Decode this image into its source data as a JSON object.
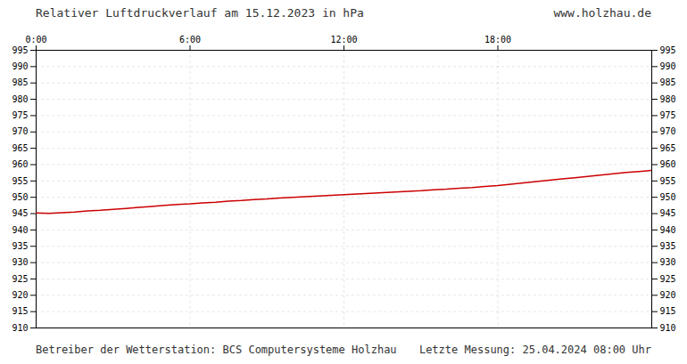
{
  "chart_data": {
    "type": "line",
    "title": "Relativer Luftdruckverlauf am 15.12.2023 in hPa",
    "annotations": [
      "www.holzhau.de",
      "Betreiber der Wetterstation: BCS Computersysteme Holzhau",
      "Letzte Messung: 25.04.2024 08:00 Uhr"
    ],
    "color": "#cc0000",
    "grid": true,
    "xlim": [
      0,
      1440
    ],
    "xticks": [
      {
        "value": 0,
        "label": "0:00"
      },
      {
        "value": 360,
        "label": "6:00"
      },
      {
        "value": 720,
        "label": "12:00"
      },
      {
        "value": 1080,
        "label": "18:00"
      }
    ],
    "ylim": [
      910,
      995
    ],
    "yticks": [
      910,
      915,
      920,
      925,
      930,
      935,
      940,
      945,
      950,
      955,
      960,
      965,
      970,
      975,
      980,
      985,
      990,
      995
    ],
    "x": [
      0,
      30,
      60,
      90,
      120,
      150,
      180,
      210,
      240,
      270,
      300,
      330,
      360,
      390,
      420,
      450,
      480,
      510,
      540,
      570,
      600,
      630,
      660,
      690,
      720,
      750,
      780,
      810,
      840,
      870,
      900,
      930,
      960,
      990,
      1020,
      1050,
      1080,
      1110,
      1140,
      1170,
      1200,
      1230,
      1260,
      1290,
      1320,
      1350,
      1380,
      1410,
      1440
    ],
    "values": [
      945.2,
      945.1,
      945.3,
      945.5,
      945.8,
      946.0,
      946.3,
      946.6,
      946.9,
      947.2,
      947.5,
      947.8,
      948.0,
      948.3,
      948.5,
      948.8,
      949.0,
      949.3,
      949.5,
      949.8,
      950.0,
      950.2,
      950.4,
      950.6,
      950.8,
      951.0,
      951.2,
      951.4,
      951.6,
      951.8,
      952.0,
      952.3,
      952.5,
      952.8,
      953.0,
      953.3,
      953.6,
      954.0,
      954.4,
      954.8,
      955.2,
      955.6,
      956.0,
      956.4,
      956.8,
      957.2,
      957.6,
      957.9,
      958.2
    ]
  }
}
